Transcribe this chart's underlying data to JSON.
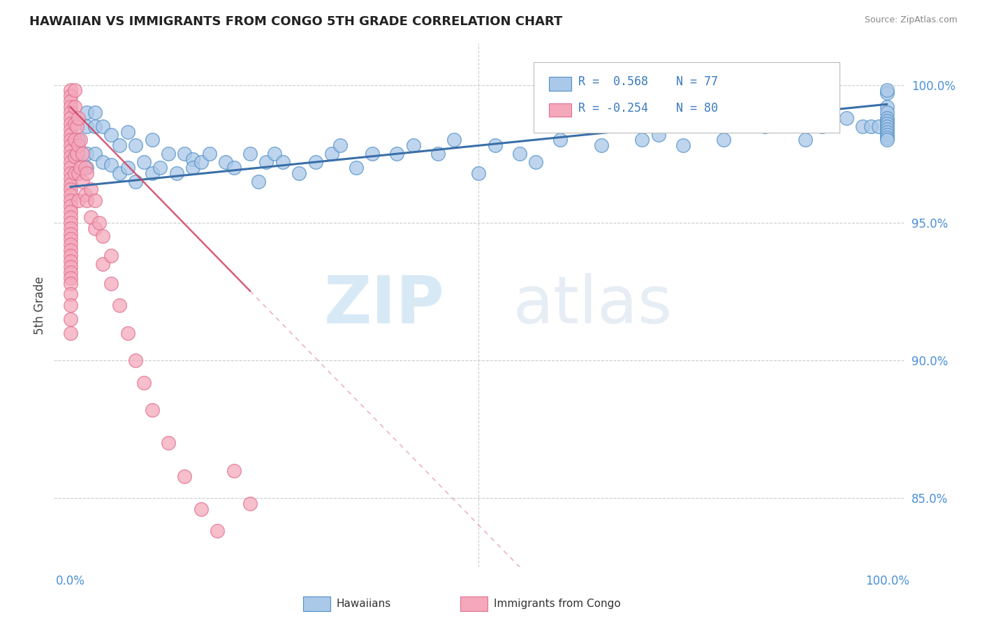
{
  "title": "HAWAIIAN VS IMMIGRANTS FROM CONGO 5TH GRADE CORRELATION CHART",
  "source": "Source: ZipAtlas.com",
  "ylabel": "5th Grade",
  "xlim": [
    -0.02,
    1.02
  ],
  "ylim": [
    0.825,
    1.015
  ],
  "yticks": [
    0.85,
    0.9,
    0.95,
    1.0
  ],
  "ytick_labels": [
    "85.0%",
    "90.0%",
    "95.0%",
    "100.0%"
  ],
  "xtick_labels": [
    "0.0%",
    "100.0%"
  ],
  "xtick_positions": [
    0.0,
    1.0
  ],
  "hawaiian_R": 0.568,
  "hawaiian_N": 77,
  "congo_R": -0.254,
  "congo_N": 80,
  "hawaiian_color": "#aac8e8",
  "congo_color": "#f5a8bc",
  "hawaiian_edge_color": "#5090c8",
  "congo_edge_color": "#e07090",
  "hawaiian_line_color": "#3a6fa8",
  "congo_line_color": "#d04060",
  "watermark_zip": "ZIP",
  "watermark_atlas": "atlas",
  "legend_hawaiians": "Hawaiians",
  "legend_congo": "Immigrants from Congo",
  "background_color": "#ffffff",
  "grid_color": "#cccccc",
  "hawaiian_x": [
    0.01,
    0.01,
    0.02,
    0.02,
    0.02,
    0.02,
    0.03,
    0.03,
    0.03,
    0.04,
    0.04,
    0.05,
    0.05,
    0.06,
    0.06,
    0.07,
    0.07,
    0.08,
    0.08,
    0.09,
    0.1,
    0.1,
    0.11,
    0.12,
    0.13,
    0.14,
    0.15,
    0.15,
    0.16,
    0.17,
    0.19,
    0.2,
    0.22,
    0.23,
    0.24,
    0.25,
    0.26,
    0.28,
    0.3,
    0.32,
    0.33,
    0.35,
    0.37,
    0.4,
    0.42,
    0.45,
    0.47,
    0.5,
    0.52,
    0.55,
    0.57,
    0.6,
    0.65,
    0.7,
    0.72,
    0.75,
    0.8,
    0.85,
    0.9,
    0.92,
    0.95,
    0.97,
    0.98,
    0.99,
    1.0,
    1.0,
    1.0,
    1.0,
    1.0,
    1.0,
    1.0,
    1.0,
    1.0,
    1.0,
    1.0,
    1.0,
    1.0
  ],
  "hawaiian_y": [
    0.98,
    0.975,
    0.99,
    0.985,
    0.975,
    0.97,
    0.99,
    0.985,
    0.975,
    0.985,
    0.972,
    0.982,
    0.971,
    0.978,
    0.968,
    0.983,
    0.97,
    0.978,
    0.965,
    0.972,
    0.98,
    0.968,
    0.97,
    0.975,
    0.968,
    0.975,
    0.973,
    0.97,
    0.972,
    0.975,
    0.972,
    0.97,
    0.975,
    0.965,
    0.972,
    0.975,
    0.972,
    0.968,
    0.972,
    0.975,
    0.978,
    0.97,
    0.975,
    0.975,
    0.978,
    0.975,
    0.98,
    0.968,
    0.978,
    0.975,
    0.972,
    0.98,
    0.978,
    0.98,
    0.982,
    0.978,
    0.98,
    0.985,
    0.98,
    0.985,
    0.988,
    0.985,
    0.985,
    0.985,
    0.997,
    0.992,
    0.99,
    0.988,
    0.987,
    0.986,
    0.985,
    0.984,
    0.983,
    0.982,
    0.981,
    0.98,
    0.998
  ],
  "congo_x": [
    0.0,
    0.0,
    0.0,
    0.0,
    0.0,
    0.0,
    0.0,
    0.0,
    0.0,
    0.0,
    0.0,
    0.0,
    0.0,
    0.0,
    0.0,
    0.0,
    0.0,
    0.0,
    0.0,
    0.0,
    0.0,
    0.0,
    0.0,
    0.0,
    0.0,
    0.0,
    0.0,
    0.0,
    0.0,
    0.0,
    0.0,
    0.0,
    0.0,
    0.0,
    0.0,
    0.0,
    0.0,
    0.0,
    0.0,
    0.0,
    0.005,
    0.005,
    0.005,
    0.005,
    0.005,
    0.005,
    0.008,
    0.008,
    0.01,
    0.01,
    0.01,
    0.01,
    0.012,
    0.012,
    0.015,
    0.015,
    0.018,
    0.018,
    0.02,
    0.02,
    0.025,
    0.025,
    0.03,
    0.03,
    0.035,
    0.04,
    0.04,
    0.05,
    0.05,
    0.06,
    0.07,
    0.08,
    0.09,
    0.1,
    0.12,
    0.14,
    0.16,
    0.18,
    0.2,
    0.22
  ],
  "congo_y": [
    0.998,
    0.996,
    0.994,
    0.992,
    0.99,
    0.988,
    0.986,
    0.984,
    0.982,
    0.98,
    0.978,
    0.976,
    0.974,
    0.972,
    0.97,
    0.968,
    0.966,
    0.964,
    0.962,
    0.96,
    0.958,
    0.956,
    0.954,
    0.952,
    0.95,
    0.948,
    0.946,
    0.944,
    0.942,
    0.94,
    0.938,
    0.936,
    0.934,
    0.932,
    0.93,
    0.928,
    0.924,
    0.92,
    0.915,
    0.91,
    0.998,
    0.992,
    0.986,
    0.98,
    0.974,
    0.968,
    0.985,
    0.975,
    0.988,
    0.978,
    0.968,
    0.958,
    0.98,
    0.97,
    0.975,
    0.965,
    0.97,
    0.96,
    0.968,
    0.958,
    0.962,
    0.952,
    0.958,
    0.948,
    0.95,
    0.945,
    0.935,
    0.938,
    0.928,
    0.92,
    0.91,
    0.9,
    0.892,
    0.882,
    0.87,
    0.858,
    0.846,
    0.838,
    0.86,
    0.848
  ],
  "h_trend_x0": 0.0,
  "h_trend_x1": 1.0,
  "h_trend_y0": 0.963,
  "h_trend_y1": 0.993,
  "c_trend_x0": 0.0,
  "c_trend_x1": 0.55,
  "c_trend_y0": 0.992,
  "c_trend_y1": 0.825
}
